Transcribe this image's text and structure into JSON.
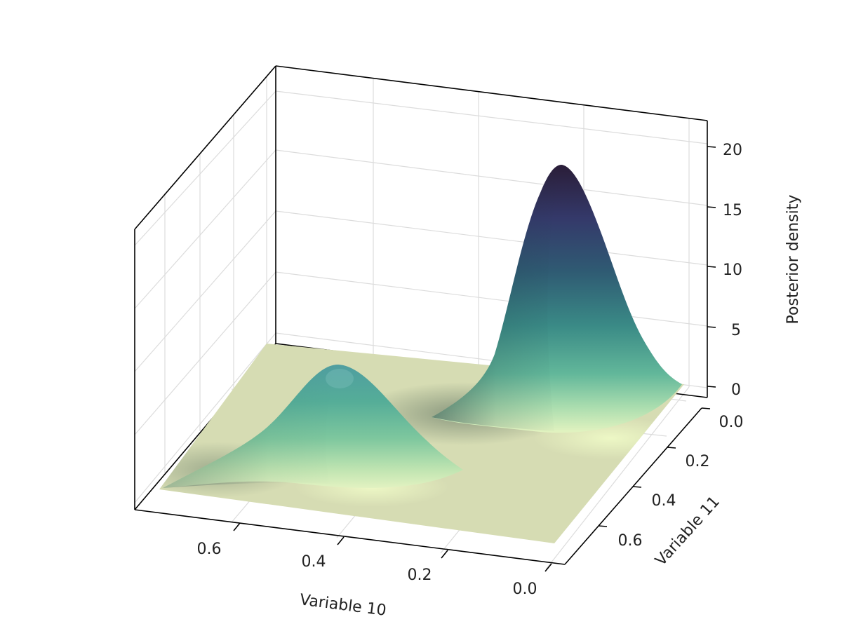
{
  "chart_data": {
    "type": "surface",
    "title": "",
    "xlabel": "Variable 10",
    "ylabel": "Variable 11",
    "zlabel": "Posterior density",
    "x_ticks": [
      0.6,
      0.4,
      0.2,
      0.0
    ],
    "x_tick_labels": [
      "0.6",
      "0.4",
      "0.2",
      "0.0"
    ],
    "y_ticks": [
      0.0,
      0.2,
      0.4,
      0.6
    ],
    "y_tick_labels": [
      "0.0",
      "0.2",
      "0.4",
      "0.6"
    ],
    "z_ticks": [
      0,
      5,
      10,
      15,
      20
    ],
    "z_tick_labels": [
      "0",
      "5",
      "10",
      "15",
      "20"
    ],
    "xlim": [
      0.0,
      0.75
    ],
    "ylim": [
      0.0,
      0.75
    ],
    "zlim": [
      0,
      22
    ],
    "grid": true,
    "colormap": [
      "#e8f6c4",
      "#a8dcae",
      "#62b79a",
      "#3a8a86",
      "#2f5b73",
      "#34396a",
      "#2a1d38"
    ],
    "peaks": [
      {
        "name": "",
        "x": 0.08,
        "y": 0.08,
        "height": 18.5
      },
      {
        "name": "",
        "x": 0.42,
        "y": 0.42,
        "height": 9.0
      }
    ]
  }
}
